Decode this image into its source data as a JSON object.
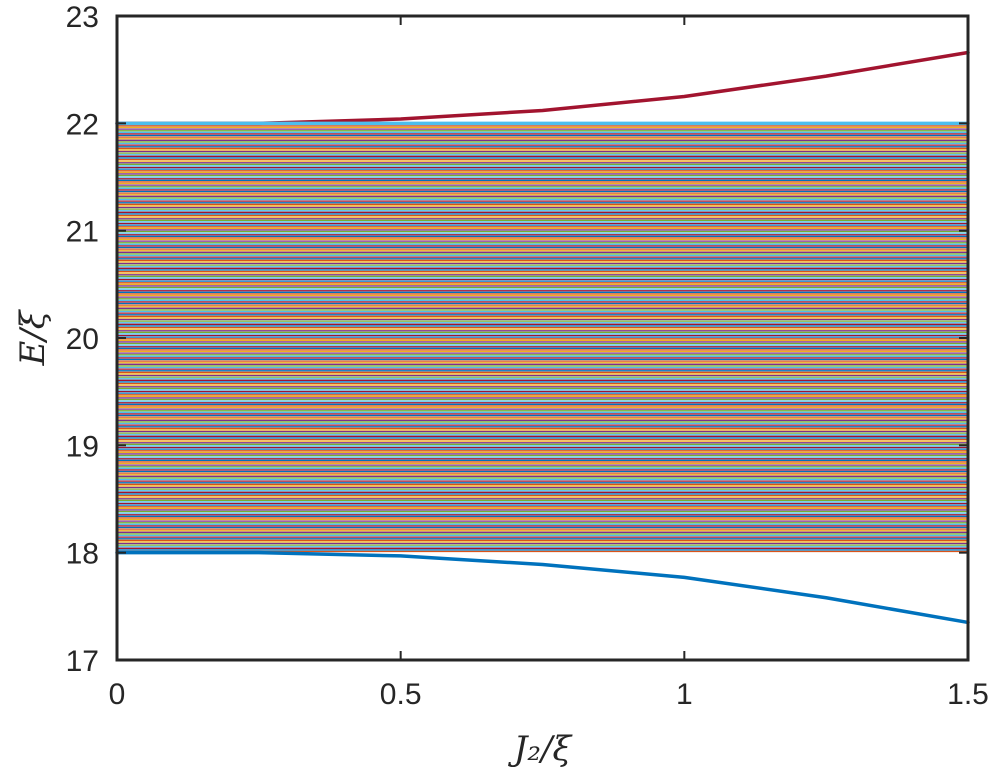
{
  "chart_data": {
    "type": "line",
    "xlabel": "J₂/ξ",
    "ylabel": "E/ξ",
    "xlim": [
      0,
      1.5
    ],
    "ylim": [
      17,
      23
    ],
    "xticks": [
      0,
      0.5,
      1,
      1.5
    ],
    "xtick_labels": [
      "0",
      "0.5",
      "1",
      "1.5"
    ],
    "yticks": [
      17,
      18,
      19,
      20,
      21,
      22,
      23
    ],
    "ytick_labels": [
      "17",
      "18",
      "19",
      "20",
      "21",
      "22",
      "23"
    ],
    "grid": false,
    "box": true,
    "bulk_band": {
      "description_values": {
        "lower": 18,
        "upper": 22
      },
      "constant_in_x": true
    },
    "series": [
      {
        "color": "#A2142F",
        "x": [
          0,
          0.25,
          0.5,
          0.75,
          1.0,
          1.25,
          1.5
        ],
        "y": [
          22.0,
          22.0,
          22.04,
          22.12,
          22.25,
          22.44,
          22.66
        ]
      },
      {
        "color": "#4DBEEE",
        "x": [
          0,
          0.25,
          0.5,
          0.75,
          1.0,
          1.25,
          1.5
        ],
        "y": [
          22.0,
          22.0,
          22.0,
          22.0,
          22.0,
          22.0,
          22.0
        ]
      },
      {
        "color": "#0072BD",
        "x": [
          0,
          0.25,
          0.5,
          0.75,
          1.0,
          1.25,
          1.5
        ],
        "y": [
          18.0,
          18.0,
          17.97,
          17.89,
          17.77,
          17.58,
          17.35
        ]
      }
    ],
    "band_colors": [
      "#0072BD",
      "#D95319",
      "#EDB120",
      "#7E2F8E",
      "#77AC30",
      "#4DBEEE",
      "#A2142F"
    ]
  }
}
